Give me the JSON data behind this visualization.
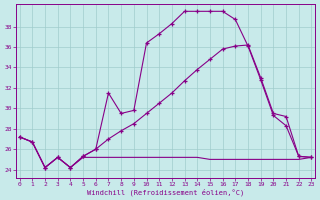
{
  "xlabel": "Windchill (Refroidissement éolien,°C)",
  "background_color": "#c8eaea",
  "grid_color": "#a0cccc",
  "line_color": "#880088",
  "x_ticks": [
    0,
    1,
    2,
    3,
    4,
    5,
    6,
    7,
    8,
    9,
    10,
    11,
    12,
    13,
    14,
    15,
    16,
    17,
    18,
    19,
    20,
    21,
    22,
    23
  ],
  "y_ticks": [
    24,
    26,
    28,
    30,
    32,
    34,
    36,
    38
  ],
  "ylim": [
    23.2,
    40.2
  ],
  "xlim": [
    -0.3,
    23.3
  ],
  "line1_x": [
    0,
    1,
    2,
    3,
    4,
    5,
    6,
    7,
    8,
    9,
    10,
    11,
    12,
    13,
    14,
    15,
    16,
    17,
    18,
    19,
    20,
    21,
    22,
    23
  ],
  "line1_y": [
    27.2,
    26.7,
    24.2,
    25.2,
    24.2,
    25.3,
    26.0,
    31.5,
    29.5,
    29.8,
    36.4,
    37.3,
    38.3,
    39.5,
    39.5,
    39.5,
    39.5,
    38.7,
    36.1,
    32.8,
    29.3,
    28.3,
    25.3,
    25.2
  ],
  "line2_x": [
    0,
    1,
    2,
    3,
    4,
    5,
    6,
    7,
    8,
    9,
    10,
    11,
    12,
    13,
    14,
    15,
    16,
    17,
    18,
    19,
    20,
    21,
    22,
    23
  ],
  "line2_y": [
    27.2,
    26.7,
    24.2,
    25.2,
    24.2,
    25.3,
    26.0,
    27.0,
    27.8,
    28.5,
    29.5,
    30.5,
    31.5,
    32.7,
    33.8,
    34.8,
    35.8,
    36.1,
    36.2,
    33.0,
    29.5,
    29.2,
    25.3,
    25.2
  ],
  "line3_x": [
    0,
    1,
    2,
    3,
    4,
    5,
    6,
    7,
    8,
    9,
    10,
    11,
    12,
    13,
    14,
    15,
    16,
    17,
    18,
    19,
    20,
    21,
    22,
    23
  ],
  "line3_y": [
    27.2,
    26.7,
    24.2,
    25.2,
    24.2,
    25.2,
    25.2,
    25.2,
    25.2,
    25.2,
    25.2,
    25.2,
    25.2,
    25.2,
    25.2,
    25.0,
    25.0,
    25.0,
    25.0,
    25.0,
    25.0,
    25.0,
    25.0,
    25.2
  ]
}
